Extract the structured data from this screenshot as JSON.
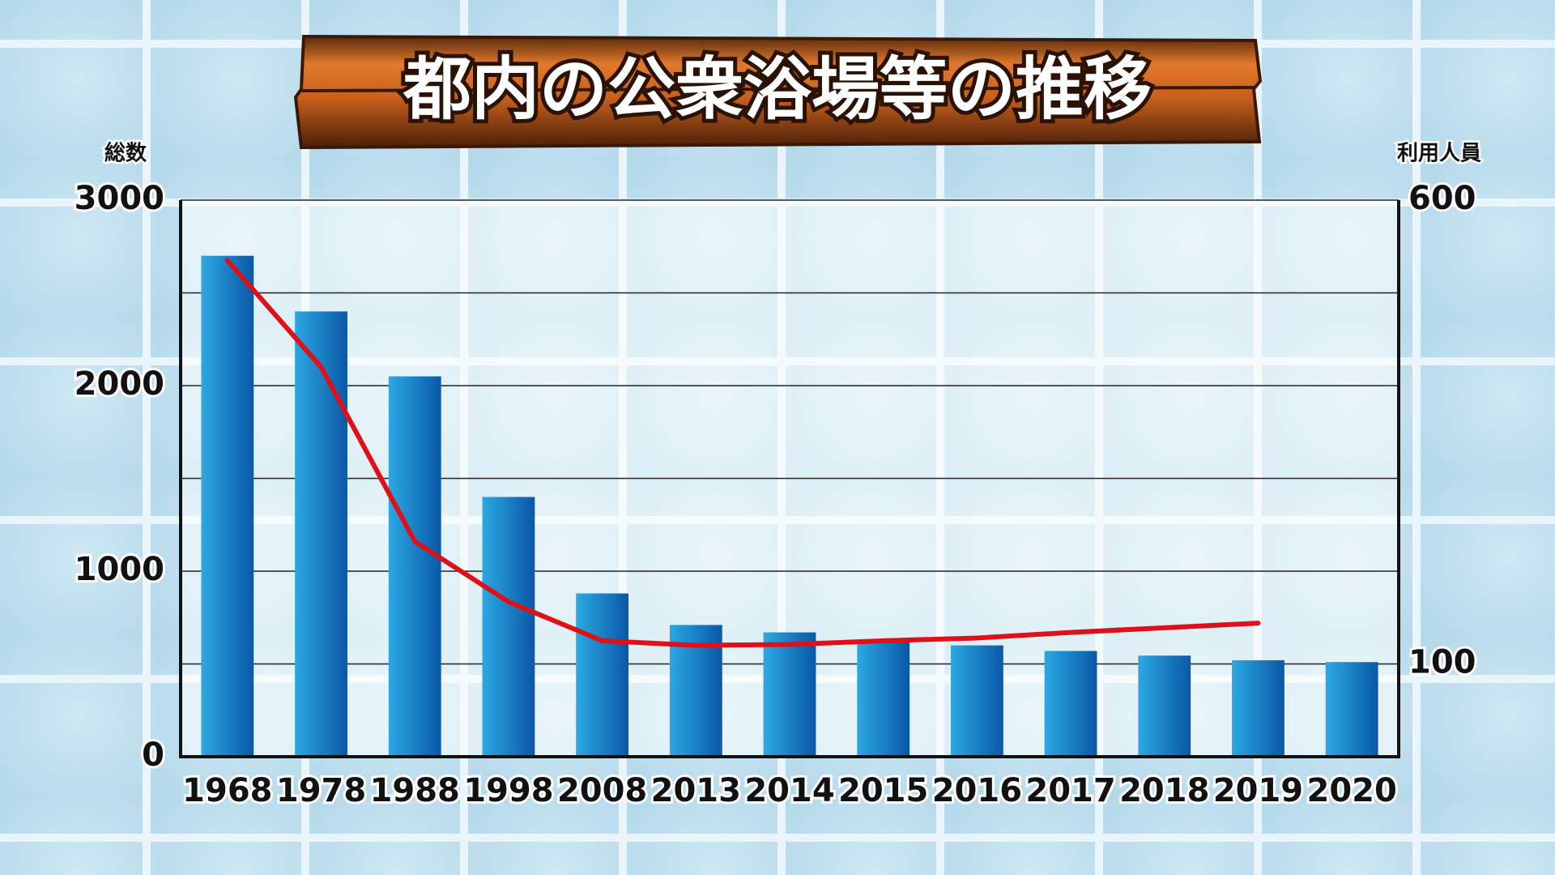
{
  "chart_data": {
    "type": "bar",
    "title": "都内の公衆浴場等の推移",
    "ylabel": "総数",
    "y2label": "利用人員",
    "categories": [
      "1968",
      "1978",
      "1988",
      "1998",
      "2008",
      "2013",
      "2014",
      "2015",
      "2016",
      "2017",
      "2018",
      "2019",
      "2020"
    ],
    "series": [
      {
        "name": "総数",
        "type": "bar",
        "color": "#1479c4",
        "values": [
          2700,
          2400,
          2050,
          1400,
          880,
          710,
          670,
          620,
          600,
          570,
          545,
          520,
          510
        ]
      },
      {
        "name": "利用人員",
        "type": "line",
        "axis": "y2",
        "color": "#e01018",
        "values": [
          535,
          420,
          232,
          167,
          125,
          120,
          121,
          125,
          128,
          134,
          139,
          144,
          null
        ]
      }
    ],
    "ylim": [
      0,
      3000
    ],
    "yticks": [
      0,
      1000,
      2000,
      3000
    ],
    "ygrid": [
      500,
      1500,
      2500
    ],
    "y2lim": [
      0,
      600
    ],
    "y2ticks": [
      100,
      600
    ],
    "grid": true
  }
}
